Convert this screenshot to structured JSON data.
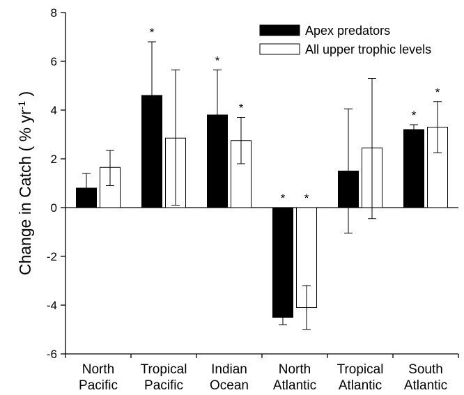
{
  "chart_data": {
    "type": "bar",
    "title": "",
    "xlabel": "",
    "ylabel": "Change in Catch ( % yr",
    "ylabel_sup": "-1",
    "ylabel_close": ")",
    "ylim": [
      -6,
      8
    ],
    "yticks": [
      -6,
      -4,
      -2,
      0,
      2,
      4,
      6,
      8
    ],
    "grid": false,
    "legend_position": "top-right",
    "categories": [
      [
        "North",
        "Pacific"
      ],
      [
        "Tropical",
        "Pacific"
      ],
      [
        "Indian",
        "Ocean"
      ],
      [
        "North",
        "Atlantic"
      ],
      [
        "Tropical",
        "Atlantic"
      ],
      [
        "South",
        "Atlantic"
      ]
    ],
    "series": [
      {
        "name": "Apex predators",
        "color": "#000000",
        "values": [
          0.8,
          4.6,
          3.8,
          -4.5,
          1.5,
          3.2
        ],
        "error_low": [
          0.0,
          0.0,
          0.0,
          -4.8,
          -1.05,
          0.0
        ],
        "error_high": [
          1.4,
          6.8,
          5.65,
          0.0,
          4.05,
          3.4
        ],
        "significant": [
          false,
          true,
          true,
          true,
          false,
          true
        ]
      },
      {
        "name": "All upper trophic levels",
        "color": "#ffffff",
        "values": [
          1.65,
          2.85,
          2.75,
          -4.1,
          2.45,
          3.3
        ],
        "error_low": [
          0.9,
          0.1,
          1.8,
          -5.0,
          -0.45,
          2.25
        ],
        "error_high": [
          2.35,
          5.65,
          3.7,
          -3.2,
          5.3,
          4.35
        ],
        "significant": [
          false,
          false,
          true,
          true,
          false,
          true
        ]
      }
    ],
    "significance_marker": "*"
  }
}
